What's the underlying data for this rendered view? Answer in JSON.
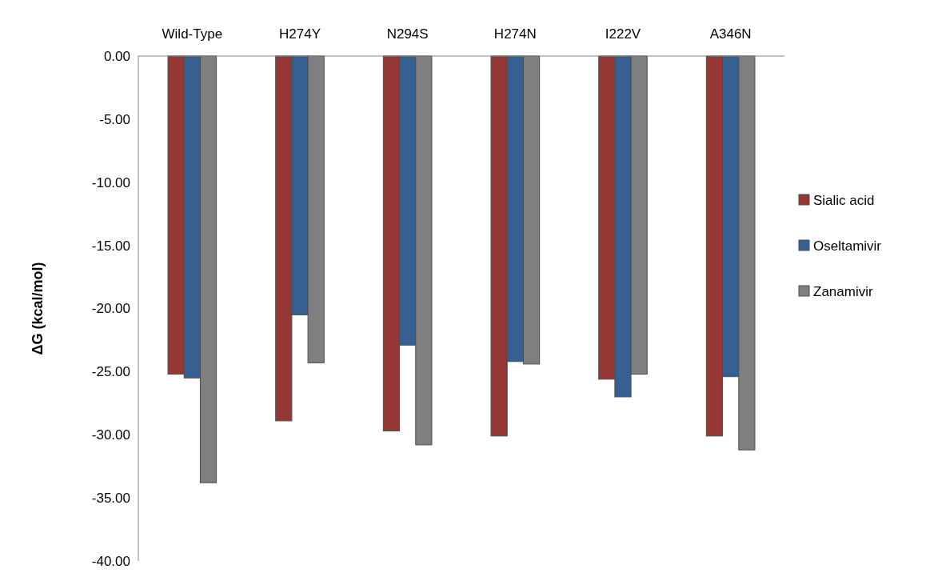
{
  "chart_data": {
    "type": "bar",
    "ylabel": "ΔG (kcal/mol)",
    "categories": [
      "Wild-Type",
      "H274Y",
      "N294S",
      "H274N",
      "I222V",
      "A346N"
    ],
    "series": [
      {
        "name": "Sialic acid",
        "color": "#953735",
        "values": [
          -25.2,
          -28.9,
          -29.7,
          -30.1,
          -25.6,
          -30.1
        ]
      },
      {
        "name": "Oseltamivir",
        "color": "#376092",
        "values": [
          -25.5,
          -20.5,
          -22.9,
          -24.2,
          -27.0,
          -25.4
        ]
      },
      {
        "name": "Zanamivir",
        "color": "#7f7f7f",
        "values": [
          -33.8,
          -24.3,
          -30.8,
          -24.4,
          -25.2,
          -31.2
        ]
      }
    ],
    "ylim": [
      -40,
      0
    ],
    "yticks": [
      {
        "value": 0,
        "label": "0.00"
      },
      {
        "value": -5,
        "label": "-5.00"
      },
      {
        "value": -10,
        "label": "-10.00"
      },
      {
        "value": -15,
        "label": "-15.00"
      },
      {
        "value": -20,
        "label": "-20.00"
      },
      {
        "value": -25,
        "label": "-25.00"
      },
      {
        "value": -30,
        "label": "-30.00"
      },
      {
        "value": -35,
        "label": "-35.00"
      },
      {
        "value": -40,
        "label": "-40.00"
      }
    ],
    "grid": false,
    "legend": "right"
  }
}
